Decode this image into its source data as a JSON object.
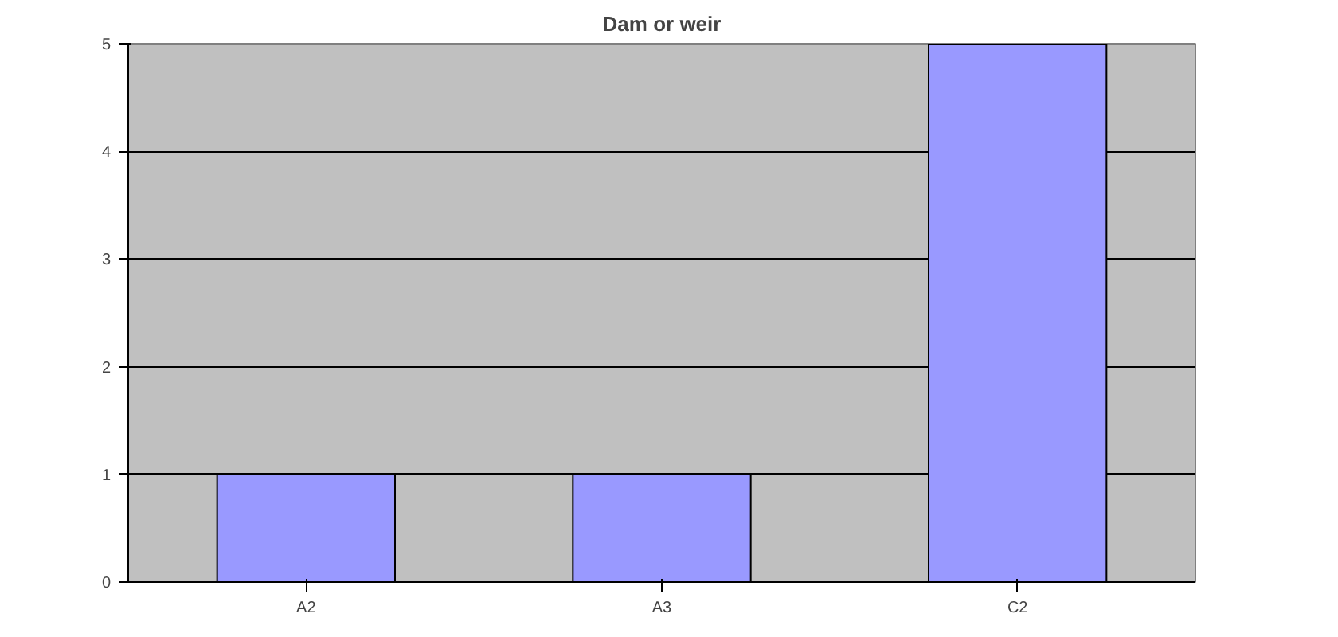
{
  "chart_data": {
    "type": "bar",
    "title": "Dam or weir",
    "categories": [
      "A2",
      "A3",
      "C2"
    ],
    "values": [
      1,
      1,
      5
    ],
    "color": "#9999ff",
    "ylim": [
      0,
      5
    ],
    "yticks": [
      0,
      1,
      2,
      3,
      4,
      5
    ],
    "grid": "y"
  }
}
